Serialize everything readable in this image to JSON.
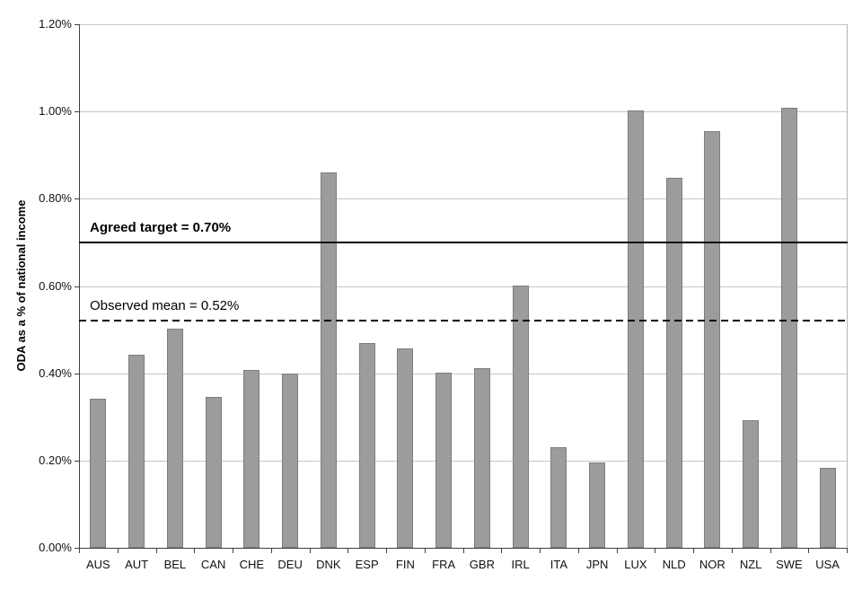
{
  "chart_data": {
    "type": "bar",
    "title": "",
    "xlabel": "",
    "ylabel": "ODA as a % of national income",
    "ylim": [
      0,
      1.2
    ],
    "grid": true,
    "legend_position": "none",
    "categories": [
      "AUS",
      "AUT",
      "BEL",
      "CAN",
      "CHE",
      "DEU",
      "DNK",
      "ESP",
      "FIN",
      "FRA",
      "GBR",
      "IRL",
      "ITA",
      "JPN",
      "LUX",
      "NLD",
      "NOR",
      "NZL",
      "SWE",
      "USA"
    ],
    "values": [
      0.342,
      0.443,
      0.502,
      0.346,
      0.408,
      0.399,
      0.861,
      0.47,
      0.456,
      0.402,
      0.412,
      0.601,
      0.23,
      0.196,
      1.003,
      0.848,
      0.956,
      0.292,
      1.009,
      0.184
    ],
    "yticks": [
      {
        "value": 0.0,
        "label": "0.00%"
      },
      {
        "value": 0.2,
        "label": "0.20%"
      },
      {
        "value": 0.4,
        "label": "0.40%"
      },
      {
        "value": 0.6,
        "label": "0.60%"
      },
      {
        "value": 0.8,
        "label": "0.80%"
      },
      {
        "value": 1.0,
        "label": "1.00%"
      },
      {
        "value": 1.2,
        "label": "1.20%"
      }
    ],
    "reference_lines": [
      {
        "value": 0.7,
        "style": "solid",
        "label": "Agreed target = 0.70%",
        "bold": true
      },
      {
        "value": 0.52,
        "style": "dashed",
        "label": "Observed mean = 0.52%",
        "bold": false
      }
    ],
    "colors": {
      "bar_fill": "#9c9c9c",
      "bar_border": "#7d7d7d",
      "gridline": "#c6c6c6",
      "axis": "#404040",
      "plot_border": "#b3b3b3",
      "reference_line": "#000000",
      "text": "#111111"
    }
  }
}
